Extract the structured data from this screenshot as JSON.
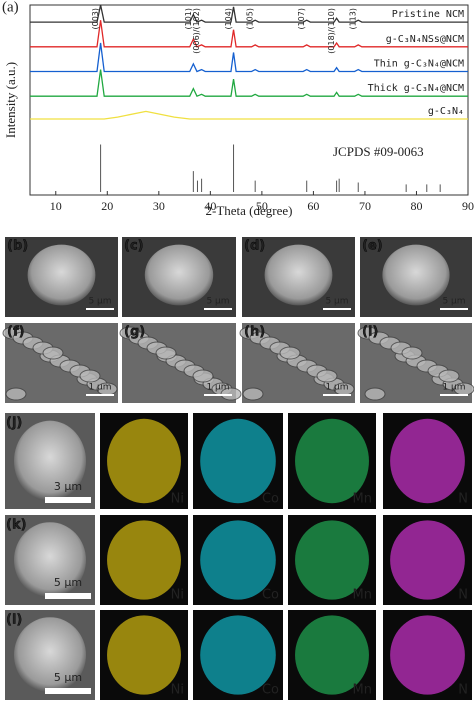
{
  "chart_data": {
    "type": "line",
    "panel_label": "(a)",
    "xlabel": "2-Theta (degree)",
    "ylabel": "Intensity (a.u.)",
    "x": [
      5,
      18,
      18.7,
      19.4,
      22,
      27.5,
      33,
      36,
      36.7,
      37.4,
      38.3,
      39,
      44,
      44.5,
      45,
      48,
      48.7,
      49.4,
      58,
      58.7,
      59.4,
      64,
      64.5,
      65,
      68,
      68.7,
      69.4,
      90
    ],
    "series": [
      {
        "name": "Pristine NCM",
        "color": "#333333",
        "label_color": "#555555",
        "values": [
          91,
          91,
          100,
          91,
          91,
          91,
          91,
          91,
          95,
          91,
          92,
          91,
          91,
          99,
          91,
          91,
          92,
          91,
          91,
          92,
          91,
          91,
          93,
          91,
          91,
          92,
          91,
          91
        ]
      },
      {
        "name": "g-C₃N₄NSs@NCM",
        "color": "#e02828",
        "label_color": "#e02828",
        "values": [
          78,
          78,
          92,
          78,
          78,
          78,
          78,
          78,
          82,
          78,
          79,
          78,
          78,
          87,
          78,
          78,
          79,
          78,
          78,
          79,
          78,
          78,
          80,
          78,
          78,
          79,
          78,
          78
        ]
      },
      {
        "name": "Thin g-C₃N₄@NCM",
        "color": "#1560d0",
        "label_color": "#1560d0",
        "values": [
          65,
          65,
          80,
          65,
          65,
          65,
          65,
          65,
          69,
          65,
          66,
          65,
          65,
          75,
          65,
          65,
          66,
          65,
          65,
          66,
          65,
          65,
          67,
          65,
          65,
          66,
          65,
          65
        ]
      },
      {
        "name": "Thick g-C₃N₄@NCM",
        "color": "#20a840",
        "label_color": "#20a840",
        "values": [
          52,
          52,
          66,
          52,
          52,
          52,
          52,
          52,
          56,
          52,
          53,
          52,
          52,
          61,
          52,
          52,
          53,
          52,
          52,
          53,
          52,
          52,
          54,
          52,
          52,
          53,
          52,
          52
        ]
      },
      {
        "name": "g-C₃N₄",
        "color": "#f0e040",
        "label_color": "#d8c020",
        "values": [
          40,
          40,
          40,
          40,
          41,
          44,
          41,
          40,
          40,
          40,
          40,
          40,
          40,
          40,
          40,
          40,
          40,
          40,
          40,
          40,
          40,
          40,
          40,
          40,
          40,
          40,
          40,
          40
        ]
      }
    ],
    "reference": {
      "name": "JCPDS #09-0063",
      "x": [
        18.7,
        36.7,
        37.5,
        38.3,
        44.5,
        48.7,
        58.7,
        64.5,
        65,
        68.7,
        78,
        82,
        84.6
      ],
      "values": [
        25,
        11,
        6,
        7,
        25,
        6,
        6,
        6,
        7,
        5,
        4,
        4,
        4
      ]
    },
    "annotations": [
      {
        "text": "(003)",
        "x": 18.7
      },
      {
        "text": "(101)",
        "x": 36.7
      },
      {
        "text": "(006)/(102)",
        "x": 38.3
      },
      {
        "text": "(104)",
        "x": 44.5
      },
      {
        "text": "(105)",
        "x": 48.7
      },
      {
        "text": "(107)",
        "x": 58.7
      },
      {
        "text": "(018)/(110)",
        "x": 64.5
      },
      {
        "text": "(113)",
        "x": 68.7
      }
    ],
    "xlim": [
      5,
      90
    ],
    "ylim": [
      0,
      100
    ],
    "xticks": [
      10,
      20,
      30,
      40,
      50,
      60,
      70,
      80,
      90
    ]
  },
  "sem_panels": [
    {
      "label": "(b)",
      "scale": "5 μm"
    },
    {
      "label": "(c)",
      "scale": "5 μm"
    },
    {
      "label": "(d)",
      "scale": "5 μm"
    },
    {
      "label": "(e)",
      "scale": "5 μm"
    },
    {
      "label": "(f)",
      "scale": "1 μm"
    },
    {
      "label": "(g)",
      "scale": "1 μm"
    },
    {
      "label": "(h)",
      "scale": "1 μm"
    },
    {
      "label": "(i)",
      "scale": "1 μm"
    }
  ],
  "mapping_rows": [
    {
      "label": "(j)",
      "scale": "3 μm",
      "elements": [
        "Ni",
        "Co",
        "Mn",
        "N"
      ]
    },
    {
      "label": "(k)",
      "scale": "5 μm",
      "elements": [
        "Ni",
        "Co",
        "Mn",
        "N"
      ]
    },
    {
      "label": "(l)",
      "scale": "5 μm",
      "elements": [
        "Ni",
        "Co",
        "Mn",
        "N"
      ]
    }
  ],
  "element_colors": [
    "#c8b010",
    "#10a8b8",
    "#20a050",
    "#c030c0"
  ]
}
